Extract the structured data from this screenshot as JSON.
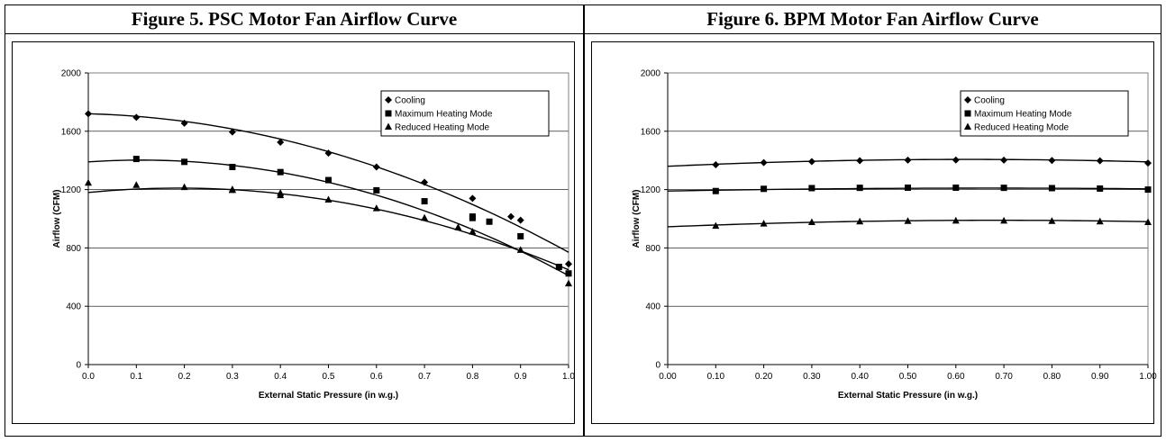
{
  "chart_data": [
    {
      "type": "scatter",
      "title": "Figure 5. PSC Motor Fan Airflow Curve",
      "xlabel": "External Static Pressure (in w.g.)",
      "ylabel": "Airflow (CFM)",
      "xlim": [
        0.0,
        1.0
      ],
      "ylim": [
        0,
        2000
      ],
      "xticks": [
        "0.0",
        "0.1",
        "0.2",
        "0.3",
        "0.4",
        "0.5",
        "0.6",
        "0.7",
        "0.8",
        "0.9",
        "1.0"
      ],
      "yticks": [
        "0",
        "400",
        "800",
        "1200",
        "1600",
        "2000"
      ],
      "grid": "horizontal",
      "legend_position": "top-right",
      "series": [
        {
          "name": "Cooling",
          "marker": "diamond",
          "points": [
            [
              0.0,
              1720
            ],
            [
              0.1,
              1695
            ],
            [
              0.2,
              1655
            ],
            [
              0.3,
              1595
            ],
            [
              0.4,
              1525
            ],
            [
              0.5,
              1450
            ],
            [
              0.6,
              1355
            ],
            [
              0.7,
              1250
            ],
            [
              0.8,
              1140
            ],
            [
              0.88,
              1015
            ],
            [
              0.9,
              990
            ],
            [
              1.0,
              690
            ]
          ],
          "trend": [
            1720,
            -90,
            -860
          ]
        },
        {
          "name": "Maximum Heating Mode",
          "marker": "square",
          "points": [
            [
              0.1,
              1410
            ],
            [
              0.2,
              1390
            ],
            [
              0.3,
              1355
            ],
            [
              0.4,
              1320
            ],
            [
              0.5,
              1265
            ],
            [
              0.6,
              1195
            ],
            [
              0.7,
              1120
            ],
            [
              0.8,
              1015
            ],
            [
              0.8,
              1005
            ],
            [
              0.835,
              980
            ],
            [
              0.9,
              880
            ],
            [
              0.98,
              670
            ],
            [
              1.0,
              625
            ]
          ],
          "trend": [
            1390,
            220,
            -1000
          ]
        },
        {
          "name": "Reduced Heating Mode",
          "marker": "triangle",
          "points": [
            [
              0.0,
              1245
            ],
            [
              0.1,
              1230
            ],
            [
              0.2,
              1215
            ],
            [
              0.3,
              1195
            ],
            [
              0.3,
              1200
            ],
            [
              0.4,
              1160
            ],
            [
              0.4,
              1175
            ],
            [
              0.5,
              1130
            ],
            [
              0.6,
              1070
            ],
            [
              0.7,
              1005
            ],
            [
              0.77,
              940
            ],
            [
              0.8,
              910
            ],
            [
              0.9,
              785
            ],
            [
              1.0,
              555
            ]
          ],
          "trend": [
            1180,
            320,
            -850
          ]
        }
      ]
    },
    {
      "type": "scatter",
      "title": "Figure 6. BPM Motor Fan Airflow Curve",
      "xlabel": "External Static Pressure (in w.g.)",
      "ylabel": "Airflow (CFM)",
      "xlim": [
        0.0,
        1.0
      ],
      "ylim": [
        0,
        2000
      ],
      "xticks": [
        "0.00",
        "0.10",
        "0.20",
        "0.30",
        "0.40",
        "0.50",
        "0.60",
        "0.70",
        "0.80",
        "0.90",
        "1.00"
      ],
      "yticks": [
        "0",
        "400",
        "800",
        "1200",
        "1600",
        "2000"
      ],
      "grid": "horizontal",
      "legend_position": "top-right",
      "series": [
        {
          "name": "Cooling",
          "marker": "diamond",
          "points": [
            [
              0.1,
              1370
            ],
            [
              0.2,
              1385
            ],
            [
              0.3,
              1392
            ],
            [
              0.4,
              1398
            ],
            [
              0.5,
              1402
            ],
            [
              0.6,
              1403
            ],
            [
              0.7,
              1402
            ],
            [
              0.8,
              1400
            ],
            [
              0.9,
              1397
            ],
            [
              1.0,
              1382
            ]
          ],
          "trend": [
            1360,
            150,
            -120
          ]
        },
        {
          "name": "Maximum Heating Mode",
          "marker": "square",
          "points": [
            [
              0.1,
              1190
            ],
            [
              0.2,
              1205
            ],
            [
              0.3,
              1210
            ],
            [
              0.4,
              1212
            ],
            [
              0.5,
              1213
            ],
            [
              0.6,
              1213
            ],
            [
              0.7,
              1212
            ],
            [
              0.8,
              1210
            ],
            [
              0.9,
              1207
            ],
            [
              1.0,
              1200
            ]
          ],
          "trend": [
            1190,
            60,
            -45
          ]
        },
        {
          "name": "Reduced Heating Mode",
          "marker": "triangle",
          "points": [
            [
              0.1,
              950
            ],
            [
              0.2,
              965
            ],
            [
              0.3,
              975
            ],
            [
              0.4,
              980
            ],
            [
              0.5,
              983
            ],
            [
              0.6,
              985
            ],
            [
              0.7,
              985
            ],
            [
              0.8,
              983
            ],
            [
              0.9,
              980
            ],
            [
              1.0,
              975
            ]
          ],
          "trend": [
            945,
            130,
            -95
          ]
        }
      ]
    }
  ]
}
